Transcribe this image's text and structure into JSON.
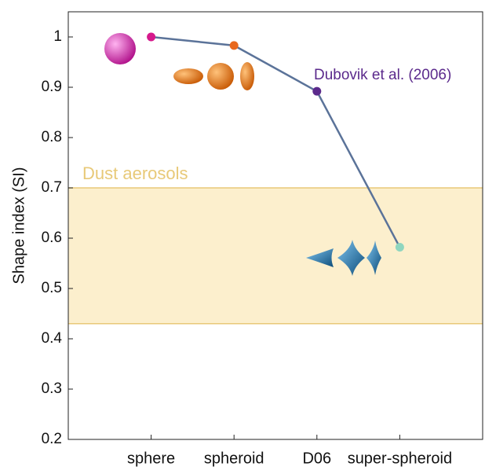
{
  "chart_data": {
    "type": "line",
    "y_label": "Shape index (SI)",
    "categories": [
      "sphere",
      "spheroid",
      "D06",
      "super-spheroid"
    ],
    "values": [
      1,
      0.983,
      0.892,
      0.582
    ],
    "line_color": "#5b7399",
    "point_colors": [
      "#d6198c",
      "#e8681d",
      "#5b2a8c",
      "#8fd6bf"
    ],
    "ylim": [
      0.2,
      1.05
    ],
    "yticks": [
      0.2,
      0.3,
      0.4,
      0.5,
      0.6,
      0.7,
      0.8,
      0.9,
      1
    ],
    "band": {
      "range": [
        0.43,
        0.7
      ],
      "label": "Dust aerosols",
      "fill": "#fcefcd",
      "edge": "#e8c978"
    },
    "annotation": {
      "text": "Dubovik et al. (2006)",
      "color": "#5b2a8c"
    }
  }
}
